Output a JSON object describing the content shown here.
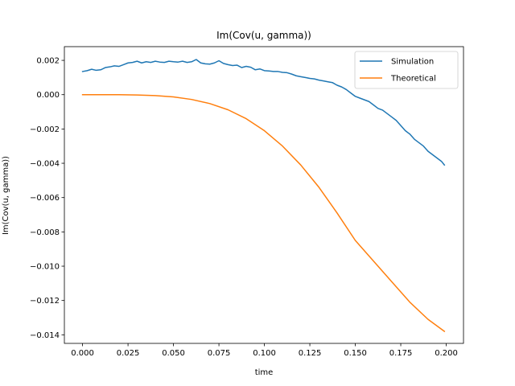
{
  "chart_data": {
    "type": "line",
    "title": "Im(Cov(u, gamma))",
    "xlabel": "time",
    "ylabel": "Im(Cov(u, gamma))",
    "xlim": [
      -0.01,
      0.2095
    ],
    "ylim": [
      -0.0145,
      0.0028
    ],
    "grid": false,
    "legend_position": "top-right",
    "x_ticks": [
      0.0,
      0.025,
      0.05,
      0.075,
      0.1,
      0.125,
      0.15,
      0.175,
      0.2
    ],
    "x_tick_labels": [
      "0.000",
      "0.025",
      "0.050",
      "0.075",
      "0.100",
      "0.125",
      "0.150",
      "0.175",
      "0.200"
    ],
    "y_ticks": [
      0.002,
      0.0,
      -0.002,
      -0.004,
      -0.006,
      -0.008,
      -0.01,
      -0.012,
      -0.014
    ],
    "y_tick_labels": [
      "0.002",
      "0.000",
      "−0.002",
      "−0.004",
      "−0.006",
      "−0.008",
      "−0.010",
      "−0.012",
      "−0.014"
    ],
    "series": [
      {
        "name": "Simulation",
        "color": "#1f77b4",
        "x": [
          0.0,
          0.0025,
          0.005,
          0.0075,
          0.01,
          0.0125,
          0.015,
          0.0175,
          0.02,
          0.0225,
          0.025,
          0.0275,
          0.03,
          0.0325,
          0.035,
          0.0375,
          0.04,
          0.0425,
          0.045,
          0.0475,
          0.05,
          0.0525,
          0.055,
          0.0575,
          0.06,
          0.0625,
          0.065,
          0.0675,
          0.07,
          0.0725,
          0.075,
          0.0775,
          0.08,
          0.0825,
          0.085,
          0.0875,
          0.09,
          0.0925,
          0.095,
          0.0975,
          0.1,
          0.1025,
          0.105,
          0.1075,
          0.11,
          0.1125,
          0.115,
          0.1175,
          0.12,
          0.1225,
          0.125,
          0.1275,
          0.13,
          0.1325,
          0.135,
          0.1375,
          0.14,
          0.1425,
          0.145,
          0.1475,
          0.15,
          0.1525,
          0.155,
          0.1575,
          0.16,
          0.1625,
          0.165,
          0.1675,
          0.17,
          0.1725,
          0.175,
          0.1775,
          0.18,
          0.1825,
          0.185,
          0.1875,
          0.19,
          0.1925,
          0.195,
          0.1975,
          0.199
        ],
        "values": [
          0.00135,
          0.0014,
          0.00148,
          0.00142,
          0.00145,
          0.00158,
          0.00162,
          0.00168,
          0.00165,
          0.00175,
          0.00185,
          0.00188,
          0.00195,
          0.00185,
          0.00192,
          0.00188,
          0.00195,
          0.0019,
          0.00188,
          0.00195,
          0.00192,
          0.0019,
          0.00195,
          0.00188,
          0.00192,
          0.00205,
          0.00185,
          0.0018,
          0.00178,
          0.00185,
          0.00198,
          0.00182,
          0.00175,
          0.0017,
          0.00172,
          0.00158,
          0.00165,
          0.0016,
          0.00145,
          0.0015,
          0.0014,
          0.00138,
          0.00135,
          0.00135,
          0.0013,
          0.00128,
          0.0012,
          0.0011,
          0.00105,
          0.001,
          0.00095,
          0.00092,
          0.00085,
          0.0008,
          0.00075,
          0.0007,
          0.00055,
          0.00045,
          0.0003,
          0.0001,
          -0.0001,
          -0.0002,
          -0.0003,
          -0.0004,
          -0.0006,
          -0.0008,
          -0.0009,
          -0.0011,
          -0.0013,
          -0.0015,
          -0.0018,
          -0.0021,
          -0.0023,
          -0.0026,
          -0.0028,
          -0.003,
          -0.0033,
          -0.0035,
          -0.0037,
          -0.0039,
          -0.0041
        ]
      },
      {
        "name": "Theoretical",
        "color": "#ff7f0e",
        "x": [
          0.0,
          0.01,
          0.02,
          0.03,
          0.04,
          0.05,
          0.06,
          0.07,
          0.08,
          0.09,
          0.1,
          0.11,
          0.12,
          0.13,
          0.14,
          0.15,
          0.16,
          0.17,
          0.18,
          0.19,
          0.199
        ],
        "values": [
          0.0,
          -2e-07,
          -3e-06,
          -1.7e-05,
          -5.5e-05,
          -0.00013,
          -0.00028,
          -0.00052,
          -0.00088,
          -0.0014,
          -0.0021,
          -0.003,
          -0.0041,
          -0.0054,
          -0.0069,
          -0.0085,
          -0.0097,
          -0.0109,
          -0.0121,
          -0.0131,
          -0.0138
        ]
      }
    ]
  }
}
